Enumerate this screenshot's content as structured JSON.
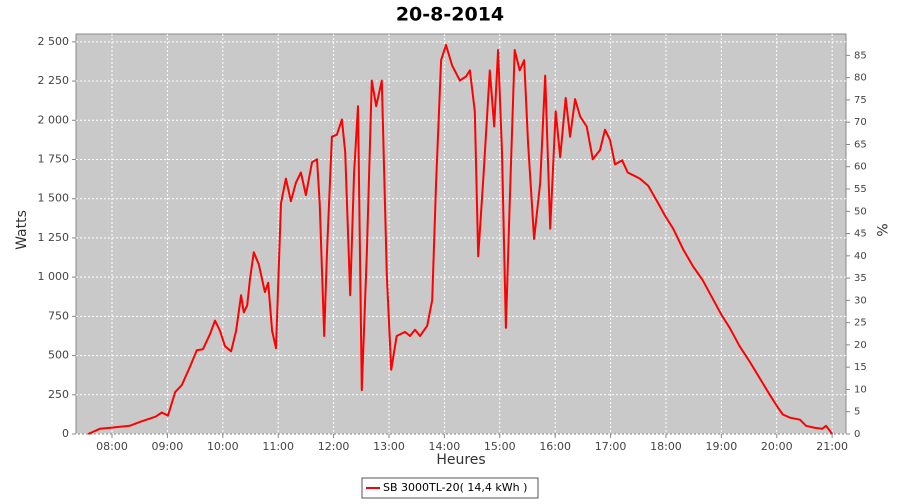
{
  "chart_data": {
    "type": "line",
    "title": "20-8-2014",
    "x_label": "Heures",
    "y_label": "Watts",
    "y2_label": "%",
    "x": [
      7.57,
      7.78,
      7.96,
      8.14,
      8.32,
      8.51,
      8.79,
      8.9,
      9.01,
      9.14,
      9.26,
      9.41,
      9.53,
      9.64,
      9.77,
      9.86,
      9.95,
      10.04,
      10.15,
      10.24,
      10.33,
      10.38,
      10.44,
      10.49,
      10.56,
      10.65,
      10.76,
      10.82,
      10.89,
      10.96,
      11.05,
      11.14,
      11.23,
      11.32,
      11.41,
      11.5,
      11.61,
      11.7,
      11.75,
      11.83,
      11.88,
      11.97,
      12.06,
      12.15,
      12.21,
      12.3,
      12.37,
      12.44,
      12.51,
      12.6,
      12.69,
      12.77,
      12.87,
      12.96,
      13.04,
      13.14,
      13.29,
      13.38,
      13.47,
      13.56,
      13.69,
      13.78,
      13.85,
      13.94,
      14.03,
      14.14,
      14.28,
      14.39,
      14.46,
      14.55,
      14.61,
      14.71,
      14.82,
      14.9,
      14.97,
      15.04,
      15.11,
      15.18,
      15.27,
      15.36,
      15.44,
      15.51,
      15.62,
      15.73,
      15.82,
      15.91,
      16.01,
      16.09,
      16.19,
      16.27,
      16.36,
      16.45,
      16.57,
      16.68,
      16.81,
      16.9,
      16.99,
      17.08,
      17.21,
      17.31,
      17.53,
      17.68,
      17.86,
      17.98,
      18.13,
      18.31,
      18.49,
      18.66,
      18.83,
      19.01,
      19.15,
      19.33,
      19.51,
      19.7,
      19.88,
      20.02,
      20.11,
      20.24,
      20.42,
      20.53,
      20.69,
      20.82,
      20.89,
      21.0
    ],
    "series": [
      {
        "name": "SB 3000TL-20( 14,4 kWh )",
        "color": "#ff0000",
        "values": [
          0,
          33,
          39,
          46,
          52,
          78,
          111,
          137,
          117,
          267,
          312,
          430,
          534,
          540,
          638,
          723,
          658,
          560,
          527,
          658,
          885,
          775,
          820,
          983,
          1159,
          1081,
          905,
          964,
          658,
          547,
          1471,
          1628,
          1484,
          1602,
          1667,
          1523,
          1732,
          1751,
          1471,
          625,
          1146,
          1895,
          1908,
          2005,
          1797,
          885,
          1667,
          2090,
          280,
          1146,
          2253,
          2090,
          2253,
          1016,
          410,
          625,
          651,
          625,
          664,
          625,
          690,
          853,
          1602,
          2383,
          2480,
          2350,
          2253,
          2279,
          2318,
          2057,
          1133,
          1667,
          2318,
          1960,
          2448,
          1797,
          677,
          1471,
          2448,
          2318,
          2383,
          1862,
          1243,
          1602,
          2285,
          1309,
          2057,
          1764,
          2142,
          1895,
          2135,
          2025,
          1960,
          1751,
          1810,
          1940,
          1875,
          1719,
          1745,
          1667,
          1628,
          1582,
          1471,
          1393,
          1309,
          1178,
          1068,
          983,
          872,
          755,
          677,
          560,
          462,
          352,
          247,
          169,
          124,
          104,
          91,
          52,
          39,
          33,
          52,
          0
        ]
      }
    ],
    "xlim": [
      7.35,
      21.25
    ],
    "xticks": [
      {
        "value": 8,
        "label": "08:00"
      },
      {
        "value": 9,
        "label": "09:00"
      },
      {
        "value": 10,
        "label": "10:00"
      },
      {
        "value": 11,
        "label": "11:00"
      },
      {
        "value": 12,
        "label": "12:00"
      },
      {
        "value": 13,
        "label": "13:00"
      },
      {
        "value": 14,
        "label": "14:00"
      },
      {
        "value": 15,
        "label": "15:00"
      },
      {
        "value": 16,
        "label": "16:00"
      },
      {
        "value": 17,
        "label": "17:00"
      },
      {
        "value": 18,
        "label": "18:00"
      },
      {
        "value": 19,
        "label": "19:00"
      },
      {
        "value": 20,
        "label": "20:00"
      },
      {
        "value": 21,
        "label": "21:00"
      }
    ],
    "ylim": [
      0,
      2550
    ],
    "yticks": [
      0,
      250,
      500,
      750,
      {
        "value": 1000,
        "label": "1 000"
      },
      {
        "value": 1250,
        "label": "1 250"
      },
      {
        "value": 1500,
        "label": "1 500"
      },
      {
        "value": 1750,
        "label": "1 750"
      },
      {
        "value": 2000,
        "label": "2 000"
      },
      {
        "value": 2250,
        "label": "2 250"
      },
      {
        "value": 2500,
        "label": "2 500"
      }
    ],
    "y2lim": [
      0,
      89.8
    ],
    "y2ticks": [
      0,
      5,
      10,
      15,
      20,
      25,
      30,
      35,
      40,
      45,
      50,
      55,
      60,
      65,
      70,
      75,
      80,
      85
    ],
    "grid": true
  }
}
